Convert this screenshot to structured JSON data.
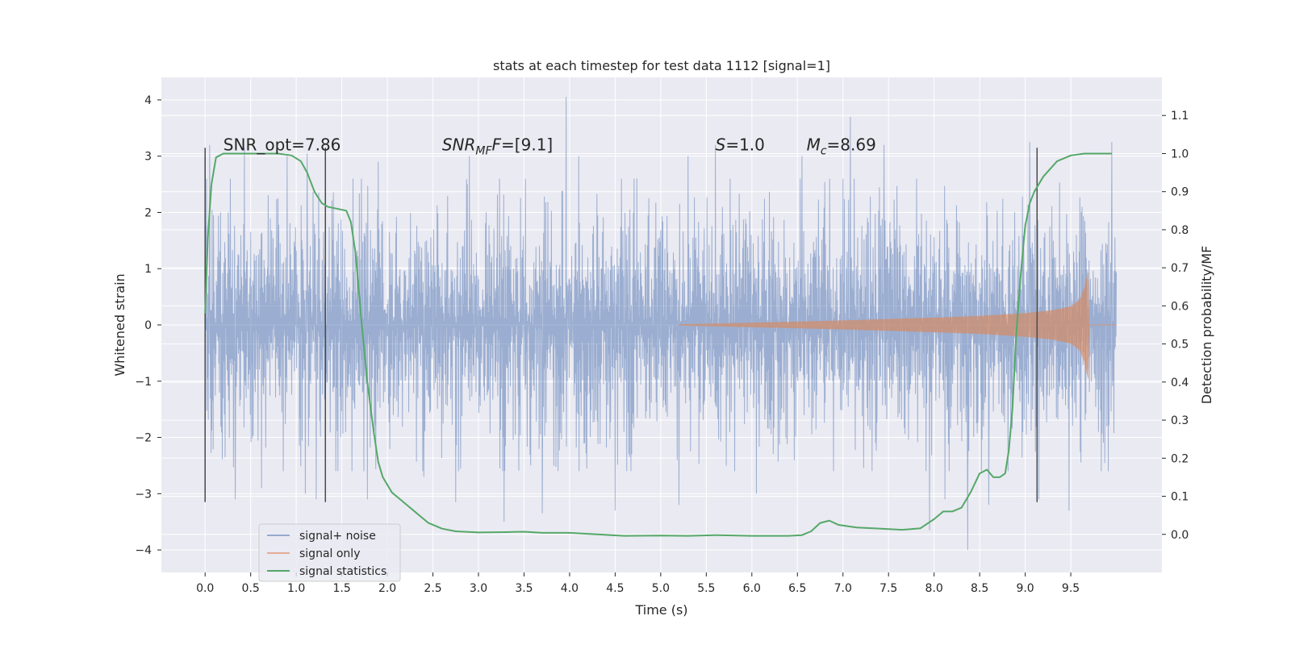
{
  "chart_data": {
    "type": "line",
    "title": "stats at each timestep for test data 1112 [signal=1]",
    "xlabel": "Time (s)",
    "ylabel": "Whitened strain",
    "y2label": "Detection probability/MF",
    "xlim": [
      -0.48,
      10.5
    ],
    "ylim": [
      -4.4,
      4.4
    ],
    "y2lim": [
      -0.1,
      1.2
    ],
    "x_ticks": [
      "0.0",
      "0.5",
      "1.0",
      "1.5",
      "2.0",
      "2.5",
      "3.0",
      "3.5",
      "4.0",
      "4.5",
      "5.0",
      "5.5",
      "6.0",
      "6.5",
      "7.0",
      "7.5",
      "8.0",
      "8.5",
      "9.0",
      "9.5"
    ],
    "x_tick_values": [
      0.0,
      0.5,
      1.0,
      1.5,
      2.0,
      2.5,
      3.0,
      3.5,
      4.0,
      4.5,
      5.0,
      5.5,
      6.0,
      6.5,
      7.0,
      7.5,
      8.0,
      8.5,
      9.0,
      9.5
    ],
    "y_ticks": [
      "4",
      "3",
      "2",
      "1",
      "0",
      "−1",
      "−2",
      "−3",
      "−4"
    ],
    "y_tick_values": [
      4,
      3,
      2,
      1,
      0,
      -1,
      -2,
      -3,
      -4
    ],
    "y2_ticks": [
      "1.1",
      "1.0",
      "0.9",
      "0.8",
      "0.7",
      "0.6",
      "0.5",
      "0.4",
      "0.3",
      "0.2",
      "0.1",
      "0.0"
    ],
    "y2_tick_values": [
      1.1,
      1.0,
      0.9,
      0.8,
      0.7,
      0.6,
      0.5,
      0.4,
      0.3,
      0.2,
      0.1,
      0.0
    ],
    "grid": true,
    "legend_position": "lower-left",
    "colors": {
      "noise": "#4c72b0",
      "signal": "#dd8452",
      "stats": "#55a868",
      "vline": "#4a4a4a",
      "plot_bg": "#eaeaf2",
      "grid": "#ffffff"
    },
    "series": [
      {
        "name": "signal+ noise",
        "axis": "left",
        "style": "dense-noise",
        "x_range": [
          0.0,
          10.0
        ],
        "typical_envelope": [
          -1.25,
          1.3
        ],
        "spikes": [
          {
            "x": 0.05,
            "y": 3.2
          },
          {
            "x": 0.17,
            "y": 2.0
          },
          {
            "x": 0.33,
            "y": -3.1
          },
          {
            "x": 0.43,
            "y": 3.15
          },
          {
            "x": 0.62,
            "y": -2.9
          },
          {
            "x": 0.9,
            "y": 3.0
          },
          {
            "x": 1.1,
            "y": -3.0
          },
          {
            "x": 1.12,
            "y": 3.05
          },
          {
            "x": 1.22,
            "y": -3.1
          },
          {
            "x": 1.78,
            "y": -3.1
          },
          {
            "x": 1.9,
            "y": 2.9
          },
          {
            "x": 2.4,
            "y": -2.7
          },
          {
            "x": 2.75,
            "y": -3.15
          },
          {
            "x": 2.9,
            "y": 3.0
          },
          {
            "x": 3.28,
            "y": -3.5
          },
          {
            "x": 3.7,
            "y": -3.35
          },
          {
            "x": 3.96,
            "y": 4.05
          },
          {
            "x": 3.98,
            "y": 0.7
          },
          {
            "x": 4.1,
            "y": 3.0
          },
          {
            "x": 4.5,
            "y": -3.3
          },
          {
            "x": 5.2,
            "y": -3.2
          },
          {
            "x": 5.3,
            "y": 3.0
          },
          {
            "x": 5.6,
            "y": 3.2
          },
          {
            "x": 6.05,
            "y": -3.0
          },
          {
            "x": 6.55,
            "y": 3.0
          },
          {
            "x": 7.08,
            "y": 3.7
          },
          {
            "x": 7.45,
            "y": 3.2
          },
          {
            "x": 7.95,
            "y": -3.65
          },
          {
            "x": 8.12,
            "y": -3.1
          },
          {
            "x": 8.37,
            "y": -4.0
          },
          {
            "x": 8.6,
            "y": -3.2
          },
          {
            "x": 9.05,
            "y": 3.25
          },
          {
            "x": 9.15,
            "y": -3.1
          },
          {
            "x": 9.48,
            "y": -3.3
          },
          {
            "x": 9.95,
            "y": 3.25
          }
        ]
      },
      {
        "name": "signal only",
        "axis": "left",
        "style": "chirp",
        "x": [
          5.2,
          6.0,
          7.0,
          8.0,
          8.5,
          9.0,
          9.3,
          9.5,
          9.6,
          9.65,
          9.69,
          9.7
        ],
        "amplitude": [
          0.01,
          0.04,
          0.08,
          0.13,
          0.16,
          0.21,
          0.26,
          0.33,
          0.45,
          0.65,
          0.95,
          0.0
        ]
      },
      {
        "name": "signal statistics",
        "axis": "right",
        "x": [
          0.0,
          0.03,
          0.07,
          0.12,
          0.2,
          0.3,
          0.5,
          0.8,
          0.95,
          1.05,
          1.12,
          1.2,
          1.28,
          1.35,
          1.45,
          1.55,
          1.6,
          1.65,
          1.72,
          1.78,
          1.85,
          1.9,
          1.95,
          2.05,
          2.15,
          2.3,
          2.45,
          2.6,
          2.75,
          3.0,
          3.3,
          3.5,
          3.7,
          4.0,
          4.3,
          4.6,
          5.0,
          5.3,
          5.6,
          6.0,
          6.4,
          6.55,
          6.65,
          6.75,
          6.85,
          6.95,
          7.15,
          7.4,
          7.65,
          7.85,
          8.0,
          8.1,
          8.2,
          8.3,
          8.4,
          8.5,
          8.58,
          8.65,
          8.72,
          8.78,
          8.82,
          8.86,
          8.9,
          8.95,
          9.0,
          9.05,
          9.1,
          9.2,
          9.35,
          9.5,
          9.65,
          9.8,
          9.95
        ],
        "values": [
          0.58,
          0.78,
          0.92,
          0.99,
          1.0,
          1.0,
          1.0,
          1.0,
          0.995,
          0.98,
          0.95,
          0.9,
          0.87,
          0.86,
          0.855,
          0.85,
          0.82,
          0.74,
          0.55,
          0.4,
          0.27,
          0.19,
          0.15,
          0.11,
          0.09,
          0.06,
          0.03,
          0.015,
          0.008,
          0.005,
          0.006,
          0.007,
          0.004,
          0.004,
          0.0,
          -0.004,
          -0.003,
          -0.004,
          -0.002,
          -0.004,
          -0.004,
          -0.002,
          0.008,
          0.03,
          0.036,
          0.025,
          0.018,
          0.015,
          0.012,
          0.016,
          0.04,
          0.06,
          0.06,
          0.07,
          0.11,
          0.16,
          0.17,
          0.15,
          0.15,
          0.16,
          0.22,
          0.33,
          0.52,
          0.68,
          0.81,
          0.87,
          0.9,
          0.94,
          0.98,
          0.995,
          1.0,
          1.0,
          1.0
        ]
      }
    ],
    "vertical_lines": [
      {
        "x": 0.0,
        "y_range": [
          -3.15,
          3.15
        ]
      },
      {
        "x": 1.32,
        "y_range": [
          -3.15,
          3.15
        ]
      },
      {
        "x": 9.13,
        "y_range": [
          -3.15,
          3.15
        ]
      }
    ],
    "annotations": [
      {
        "id": "snr-opt",
        "text": "SNR_opt=7.86",
        "x": 0.2,
        "y": 3.2
      },
      {
        "id": "snr-mf",
        "base": "SNR",
        "sub": "MF",
        "rest": "=[9.1]",
        "italic": true,
        "x": 2.6,
        "y": 3.2
      },
      {
        "id": "s-value",
        "base": "S",
        "sub": "",
        "rest": "=1.0",
        "italic": true,
        "x": 5.6,
        "y": 3.2
      },
      {
        "id": "mc-value",
        "base": "M",
        "sub": "c",
        "rest": "=8.69",
        "italic": true,
        "x": 6.6,
        "y": 3.2
      }
    ]
  }
}
